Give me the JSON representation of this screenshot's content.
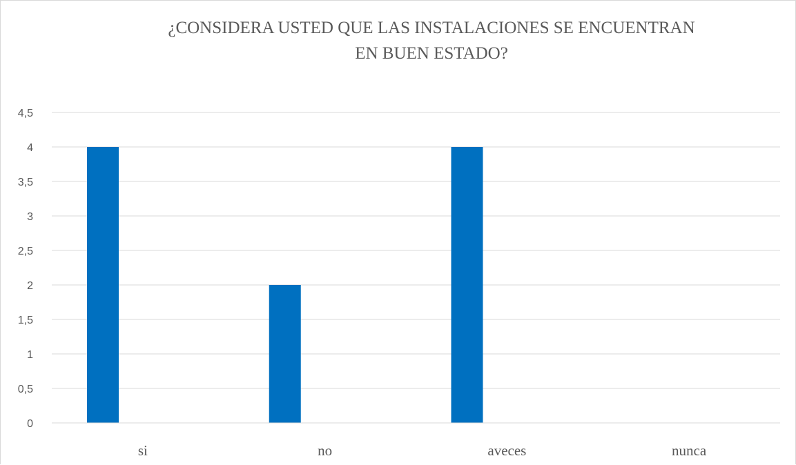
{
  "chart_data": {
    "type": "bar",
    "title": "¿CONSIDERA USTED QUE LAS INSTALACIONES SE ENCUENTRAN\nEN BUEN ESTADO?",
    "categories": [
      "si",
      "no",
      "aveces",
      "nunca"
    ],
    "values": [
      4,
      2,
      4,
      0
    ],
    "ylim": [
      0,
      4.5
    ],
    "ytick_step": 0.5,
    "ytick_labels": [
      "0",
      "0,5",
      "1",
      "1,5",
      "2",
      "2,5",
      "3",
      "3,5",
      "4",
      "4,5"
    ],
    "grid": true,
    "legend": "none",
    "bar_color": "#0070C0",
    "grid_color": "#d9d9d9",
    "text_color": "#595959"
  }
}
